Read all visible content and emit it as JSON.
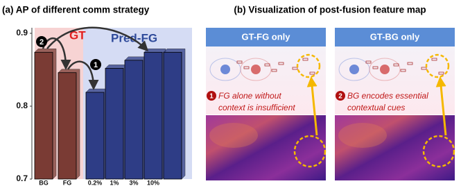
{
  "chart_data": {
    "type": "bar",
    "title": "(a) AP of different comm strategy",
    "categories": [
      "BG",
      "FG",
      "0.2%",
      "1%",
      "3%",
      "10%",
      null
    ],
    "values": [
      0.874,
      0.846,
      0.819,
      0.852,
      0.863,
      0.874,
      0.874
    ],
    "colors": [
      "#7a3b34",
      "#7a3b34",
      "#2e3d86",
      "#2e3d86",
      "#2e3d86",
      "#2e3d86",
      "#2e3d86"
    ],
    "ylim": [
      0.7,
      0.9
    ],
    "yticks": [
      0.7,
      0.8,
      0.9
    ],
    "annotations": [
      "GT",
      "Pred-FG",
      "1",
      "2"
    ]
  },
  "panel_b": {
    "title": "(b) Visualization of post-fusion feature map",
    "panels": [
      {
        "header": "GT-FG only",
        "badge": "1",
        "caption_lines": [
          "FG alone without",
          "context is insufficient"
        ]
      },
      {
        "header": "GT-BG only",
        "badge": "2",
        "caption_lines": [
          "BG encodes essential",
          "contextual cues"
        ]
      }
    ]
  }
}
